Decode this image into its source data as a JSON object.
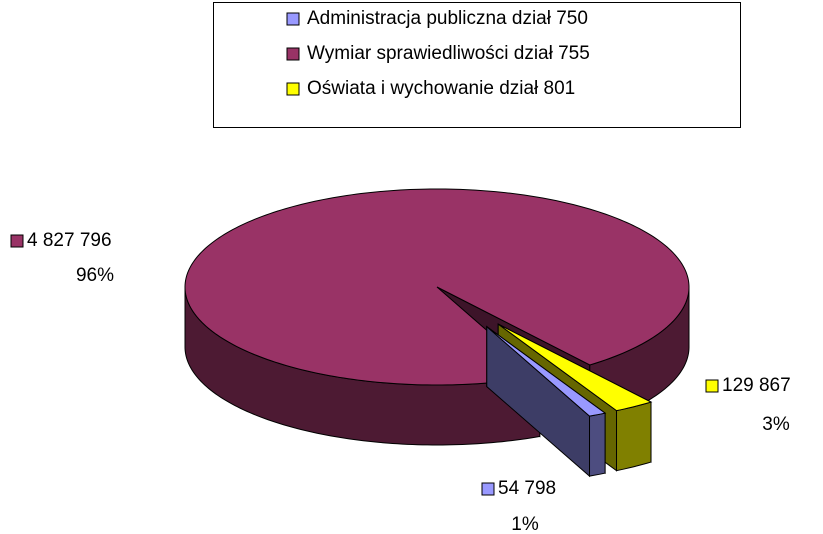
{
  "chart_data": {
    "type": "pie3d",
    "categories": [
      "Administracja publiczna dział 750",
      "Wymiar sprawiedliwości dział 755",
      "Oświata i wychowanie dział 801"
    ],
    "values": [
      54798,
      4827796,
      129867
    ],
    "value_labels": [
      "54 798",
      "4 827 796",
      "129 867"
    ],
    "percent_labels": [
      "1%",
      "96%",
      "3%"
    ],
    "colors": [
      "#9999ff",
      "#993366",
      "#ffff00"
    ],
    "legend": "top"
  }
}
